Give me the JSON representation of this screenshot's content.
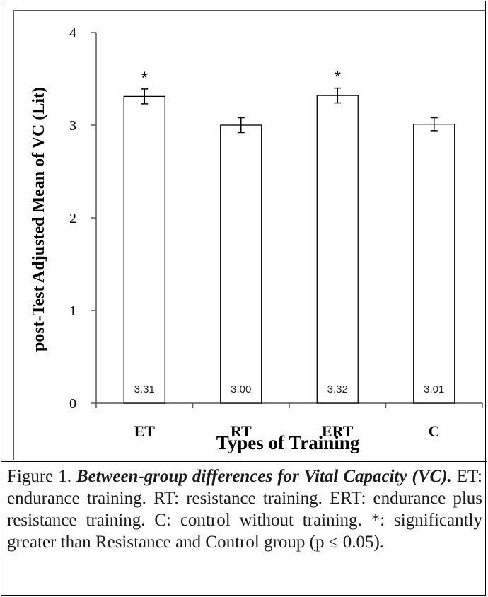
{
  "chart_data": {
    "type": "bar",
    "categories": [
      "ET",
      "RT",
      "ERT",
      "C"
    ],
    "values": [
      3.31,
      3.0,
      3.32,
      3.01
    ],
    "data_labels": [
      "3.31",
      "3.00",
      "3.32",
      "3.01"
    ],
    "error": [
      0.08,
      0.08,
      0.08,
      0.07
    ],
    "significance": [
      "*",
      "",
      "*",
      ""
    ],
    "xlabel": "Types of Training",
    "ylabel": "post-Test Adjusted Mean of VC (Lit)",
    "ylim": [
      0,
      4
    ],
    "yticks": [
      "0",
      "1",
      "2",
      "3",
      "4"
    ],
    "grid": false,
    "colors": {
      "bar_fill": "#ffffff",
      "bar_stroke": "#000000",
      "axis": "#555555"
    }
  },
  "caption": {
    "lead": "Figure 1.",
    "title": "Between-group differences for Vital Capacity (VC).",
    "body": "ET: endurance training. RT: resistance training. ERT: endurance plus resistance training. C: control without training. *: significantly greater than Resistance and Control group (p ≤ 0.05)."
  }
}
